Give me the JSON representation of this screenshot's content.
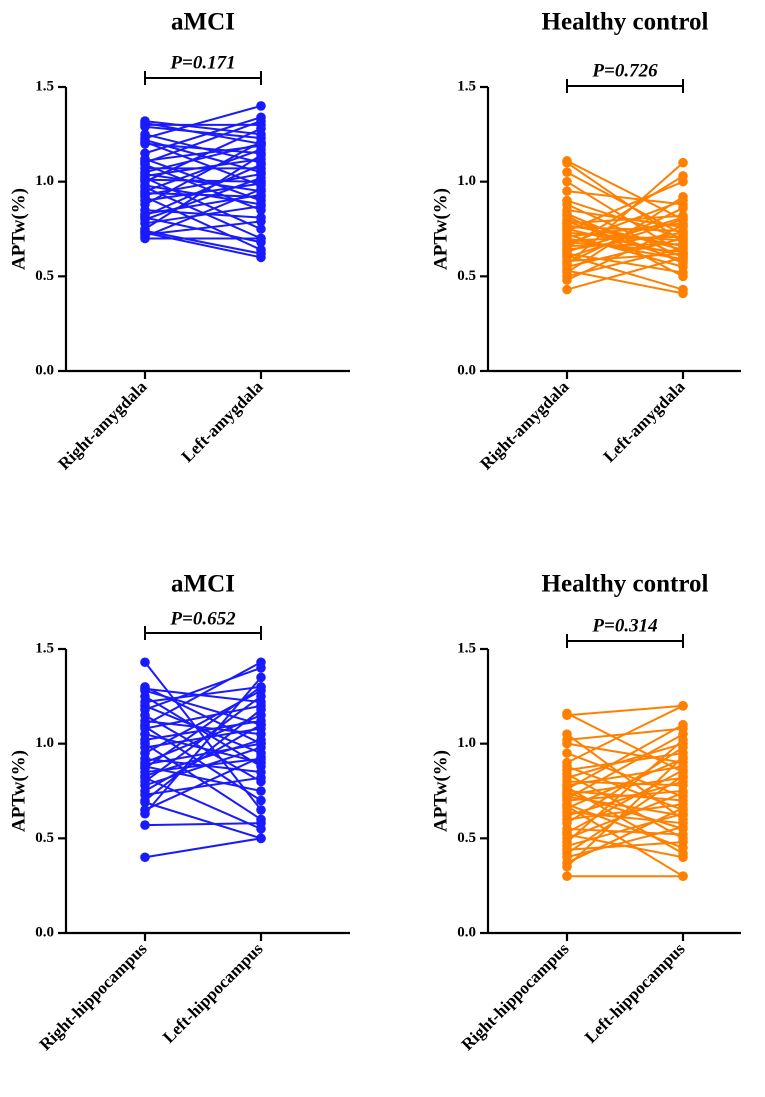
{
  "chart_data": [
    {
      "type": "line",
      "title": "aMCI",
      "ylabel": "APTw(%)",
      "ylim": [
        0,
        1.5
      ],
      "yticks": [
        "0.0",
        "0.5",
        "1.0",
        "1.5"
      ],
      "categories": [
        "Right-amygdala",
        "Left-amygdala"
      ],
      "p_value": "P=0.171",
      "color": "#1a1aff",
      "pairs": [
        [
          1.32,
          1.25
        ],
        [
          1.31,
          1.2
        ],
        [
          1.3,
          1.3
        ],
        [
          1.29,
          1.23
        ],
        [
          1.25,
          1.1
        ],
        [
          1.23,
          1.4
        ],
        [
          1.22,
          1.05
        ],
        [
          1.21,
          0.98
        ],
        [
          1.2,
          1.15
        ],
        [
          1.15,
          1.34
        ],
        [
          1.12,
          0.9
        ],
        [
          1.11,
          1.19
        ],
        [
          1.1,
          1.32
        ],
        [
          1.09,
          0.85
        ],
        [
          1.07,
          1.07
        ],
        [
          1.05,
          1.2
        ],
        [
          1.04,
          0.95
        ],
        [
          1.03,
          1.12
        ],
        [
          1.02,
          0.75
        ],
        [
          1.01,
          1.0
        ],
        [
          1.0,
          1.28
        ],
        [
          0.98,
          0.88
        ],
        [
          0.97,
          0.7
        ],
        [
          0.95,
          1.17
        ],
        [
          0.94,
          0.92
        ],
        [
          0.93,
          1.04
        ],
        [
          0.92,
          0.64
        ],
        [
          0.9,
          0.99
        ],
        [
          0.88,
          1.21
        ],
        [
          0.85,
          0.81
        ],
        [
          0.83,
          0.93
        ],
        [
          0.82,
          1.09
        ],
        [
          0.81,
          0.68
        ],
        [
          0.8,
          1.02
        ],
        [
          0.78,
          0.87
        ],
        [
          0.75,
          1.14
        ],
        [
          0.74,
          0.62
        ],
        [
          0.73,
          0.6
        ],
        [
          0.72,
          0.79
        ],
        [
          0.71,
          0.96
        ],
        [
          0.7,
          0.7
        ]
      ]
    },
    {
      "type": "line",
      "title": "Healthy control",
      "ylabel": "APTw(%)",
      "ylim": [
        0,
        1.5
      ],
      "yticks": [
        "0.0",
        "0.5",
        "1.0",
        "1.5"
      ],
      "categories": [
        "Right-amygdala",
        "Left-amygdala"
      ],
      "p_value": "P=0.726",
      "color": "#ff8000",
      "pairs": [
        [
          1.11,
          0.8
        ],
        [
          1.1,
          0.68
        ],
        [
          1.05,
          0.72
        ],
        [
          1.0,
          0.62
        ],
        [
          0.95,
          0.88
        ],
        [
          0.9,
          0.7
        ],
        [
          0.88,
          0.6
        ],
        [
          0.85,
          0.76
        ],
        [
          0.82,
          0.5
        ],
        [
          0.8,
          0.64
        ],
        [
          0.79,
          0.58
        ],
        [
          0.78,
          0.82
        ],
        [
          0.77,
          0.66
        ],
        [
          0.76,
          0.74
        ],
        [
          0.75,
          0.61
        ],
        [
          0.74,
          1.0
        ],
        [
          0.73,
          0.69
        ],
        [
          0.72,
          0.55
        ],
        [
          0.71,
          0.78
        ],
        [
          0.7,
          0.59
        ],
        [
          0.69,
          0.71
        ],
        [
          0.68,
          0.63
        ],
        [
          0.67,
          0.9
        ],
        [
          0.66,
          0.67
        ],
        [
          0.65,
          1.03
        ],
        [
          0.64,
          0.73
        ],
        [
          0.62,
          0.52
        ],
        [
          0.6,
          0.8
        ],
        [
          0.58,
          0.62
        ],
        [
          0.57,
          0.86
        ],
        [
          0.55,
          0.7
        ],
        [
          0.53,
          0.41
        ],
        [
          0.52,
          0.92
        ],
        [
          0.5,
          0.65
        ],
        [
          0.48,
          0.77
        ],
        [
          0.43,
          0.6
        ],
        [
          0.56,
          1.1
        ],
        [
          0.61,
          0.43
        ],
        [
          0.63,
          0.81
        ],
        [
          0.83,
          0.57
        ]
      ]
    },
    {
      "type": "line",
      "title": "aMCI",
      "ylabel": "APTw(%)",
      "ylim": [
        0,
        1.5
      ],
      "yticks": [
        "0.0",
        "0.5",
        "1.0",
        "1.5"
      ],
      "categories": [
        "Right-hippocampus",
        "Left-hippocampus"
      ],
      "p_value": "P=0.652",
      "color": "#1a1aff",
      "pairs": [
        [
          1.43,
          0.65
        ],
        [
          1.3,
          1.0
        ],
        [
          1.29,
          1.22
        ],
        [
          1.28,
          1.1
        ],
        [
          1.25,
          0.88
        ],
        [
          1.22,
          1.3
        ],
        [
          1.2,
          0.95
        ],
        [
          1.18,
          1.4
        ],
        [
          1.15,
          0.8
        ],
        [
          1.12,
          1.05
        ],
        [
          1.1,
          1.43
        ],
        [
          1.09,
          0.7
        ],
        [
          1.08,
          1.2
        ],
        [
          1.05,
          0.9
        ],
        [
          1.02,
          1.12
        ],
        [
          1.0,
          0.6
        ],
        [
          0.98,
          1.08
        ],
        [
          0.95,
          1.28
        ],
        [
          0.92,
          0.85
        ],
        [
          0.9,
          1.15
        ],
        [
          0.89,
          1.0
        ],
        [
          0.88,
          0.75
        ],
        [
          0.87,
          1.3
        ],
        [
          0.85,
          0.92
        ],
        [
          0.83,
          1.02
        ],
        [
          0.82,
          0.55
        ],
        [
          0.8,
          1.25
        ],
        [
          0.78,
          0.98
        ],
        [
          0.75,
          1.1
        ],
        [
          0.73,
          0.82
        ],
        [
          0.7,
          1.18
        ],
        [
          0.69,
          0.5
        ],
        [
          0.65,
          0.93
        ],
        [
          0.63,
          1.35
        ],
        [
          0.57,
          0.58
        ],
        [
          0.4,
          0.5
        ]
      ]
    },
    {
      "type": "line",
      "title": "Healthy control",
      "ylabel": "APTw(%)",
      "ylim": [
        0,
        1.5
      ],
      "yticks": [
        "0.0",
        "0.5",
        "1.0",
        "1.5"
      ],
      "categories": [
        "Right-hippocampus",
        "Left-hippocampus"
      ],
      "p_value": "P=0.314",
      "color": "#ff8000",
      "pairs": [
        [
          1.16,
          0.85
        ],
        [
          1.15,
          1.2
        ],
        [
          1.05,
          0.6
        ],
        [
          1.02,
          1.08
        ],
        [
          1.0,
          0.9
        ],
        [
          0.95,
          0.72
        ],
        [
          0.9,
          1.2
        ],
        [
          0.88,
          0.65
        ],
        [
          0.86,
          0.95
        ],
        [
          0.84,
          0.5
        ],
        [
          0.82,
          1.0
        ],
        [
          0.8,
          0.78
        ],
        [
          0.78,
          0.88
        ],
        [
          0.77,
          0.42
        ],
        [
          0.76,
          1.1
        ],
        [
          0.75,
          0.7
        ],
        [
          0.74,
          0.55
        ],
        [
          0.73,
          0.82
        ],
        [
          0.72,
          0.62
        ],
        [
          0.71,
          1.05
        ],
        [
          0.7,
          0.75
        ],
        [
          0.68,
          0.45
        ],
        [
          0.66,
          0.92
        ],
        [
          0.64,
          0.58
        ],
        [
          0.62,
          0.8
        ],
        [
          0.6,
          0.68
        ],
        [
          0.58,
          0.98
        ],
        [
          0.55,
          0.52
        ],
        [
          0.53,
          0.86
        ],
        [
          0.52,
          0.4
        ],
        [
          0.5,
          0.74
        ],
        [
          0.48,
          1.02
        ],
        [
          0.46,
          0.63
        ],
        [
          0.44,
          0.48
        ],
        [
          0.42,
          0.83
        ],
        [
          0.4,
          0.56
        ],
        [
          0.37,
          0.66
        ],
        [
          0.35,
          0.93
        ],
        [
          0.3,
          0.3
        ],
        [
          0.67,
          0.3
        ]
      ]
    }
  ]
}
